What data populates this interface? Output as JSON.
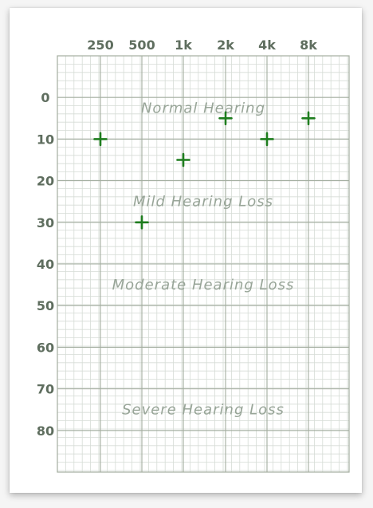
{
  "chart_data": {
    "type": "scatter",
    "x_categories": [
      "250",
      "500",
      "1k",
      "2k",
      "4k",
      "8k"
    ],
    "y_ticks": [
      0,
      10,
      20,
      30,
      40,
      50,
      60,
      70,
      80
    ],
    "ylim": [
      -10,
      90
    ],
    "y_inverted": true,
    "grid": true,
    "zones": [
      {
        "label": "Normal Hearing",
        "y": 2.5
      },
      {
        "label": "Mild Hearing Loss",
        "y": 25
      },
      {
        "label": "Moderate Hearing Loss",
        "y": 45
      },
      {
        "label": "Severe Hearing Loss",
        "y": 75
      }
    ],
    "series": [
      {
        "marker": "plus",
        "color": "#1e7d1e",
        "points": [
          {
            "x": "250",
            "y": 10
          },
          {
            "x": "500",
            "y": 30
          },
          {
            "x": "1k",
            "y": 15
          },
          {
            "x": "2k",
            "y": 5
          },
          {
            "x": "4k",
            "y": 10
          },
          {
            "x": "8k",
            "y": 5
          }
        ]
      }
    ]
  }
}
